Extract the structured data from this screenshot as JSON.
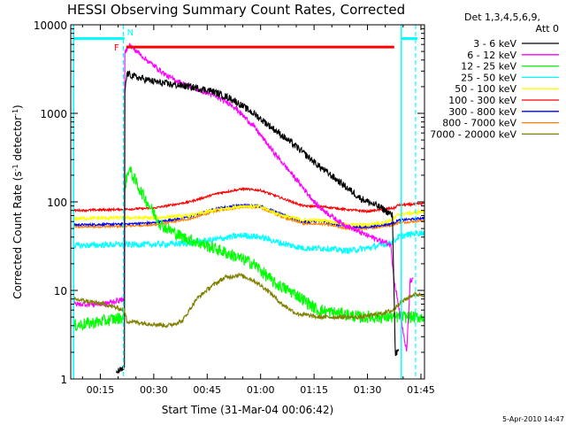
{
  "chart_data": {
    "type": "line",
    "title": "HESSI Observing Summary Count Rates, Corrected",
    "xlabel": "Start Time (31-Mar-04 00:06:42)",
    "ylabel_main": "Corrected Count Rate (s",
    "ylabel_sup": "-1",
    "ylabel_mid": " detector",
    "ylabel_end": ")",
    "yscale": "log",
    "ylim": [
      1,
      10000
    ],
    "xlim_min": [
      6.7,
      106
    ],
    "grid": false,
    "legend_position": "top-right outside",
    "legend_header": [
      "Det 1,3,4,5,6,9,",
      "Att 0"
    ],
    "date_stamp": "5-Apr-2010 14:47",
    "x_ticks": [
      {
        "value": 15,
        "label": "00:15"
      },
      {
        "value": 30,
        "label": "00:30"
      },
      {
        "value": 45,
        "label": "00:45"
      },
      {
        "value": 60,
        "label": "01:00"
      },
      {
        "value": 75,
        "label": "01:15"
      },
      {
        "value": 90,
        "label": "01:30"
      },
      {
        "value": 105,
        "label": "01:45"
      }
    ],
    "y_ticks": [
      {
        "value": 1,
        "label": "1"
      },
      {
        "value": 10,
        "label": "10"
      },
      {
        "value": 100,
        "label": "100"
      },
      {
        "value": 1000,
        "label": "1000"
      },
      {
        "value": 10000,
        "label": "10000"
      }
    ],
    "markers": {
      "orbit_lines_x": [
        7.5,
        99.5
      ],
      "saa_lines_x": [
        21.5,
        103.5
      ],
      "day_bars": [
        {
          "x": [
            7.5,
            21.8
          ],
          "y": 7000
        },
        {
          "x": [
            99.5,
            104
          ],
          "y": 7000
        }
      ],
      "flare_bar": {
        "x": [
          22.3,
          97.5
        ],
        "y": 5600,
        "label": "F"
      },
      "n_label": "N",
      "n_x": 22.0
    },
    "series": [
      {
        "name": "3 - 6 keV",
        "color": "#000000",
        "noise": 0.04,
        "points": [
          [
            19.5,
            1.2
          ],
          [
            21.8,
            1.3
          ],
          [
            21.9,
            1800
          ],
          [
            22.5,
            2800
          ],
          [
            26,
            2500
          ],
          [
            32,
            2200
          ],
          [
            40,
            2000
          ],
          [
            46,
            1800
          ],
          [
            52,
            1450
          ],
          [
            58,
            1000
          ],
          [
            64,
            650
          ],
          [
            70,
            420
          ],
          [
            76,
            260
          ],
          [
            82,
            170
          ],
          [
            88,
            110
          ],
          [
            94,
            85
          ],
          [
            97,
            70
          ],
          [
            97.8,
            2
          ],
          [
            98.8,
            2
          ]
        ]
      },
      {
        "name": "6 - 12 keV",
        "color": "#ff00ff",
        "noise": 0.03,
        "points": [
          [
            7.5,
            7
          ],
          [
            16,
            7
          ],
          [
            21.7,
            8
          ],
          [
            21.9,
            4800
          ],
          [
            23,
            6000
          ],
          [
            28,
            4000
          ],
          [
            34,
            2600
          ],
          [
            40,
            2000
          ],
          [
            46,
            1650
          ],
          [
            52,
            1250
          ],
          [
            58,
            720
          ],
          [
            64,
            350
          ],
          [
            70,
            180
          ],
          [
            76,
            90
          ],
          [
            82,
            60
          ],
          [
            88,
            45
          ],
          [
            94,
            36
          ],
          [
            96.5,
            33
          ],
          [
            97.5,
            13
          ],
          [
            101,
            2
          ],
          [
            102,
            13
          ],
          [
            103,
            13
          ]
        ]
      },
      {
        "name": "12 - 25 keV",
        "color": "#00ff00",
        "noise": 0.07,
        "points": [
          [
            7.5,
            4
          ],
          [
            16,
            4.5
          ],
          [
            21.7,
            5
          ],
          [
            21.9,
            150
          ],
          [
            23,
            240
          ],
          [
            26,
            140
          ],
          [
            32,
            55
          ],
          [
            38,
            40
          ],
          [
            45,
            32
          ],
          [
            52,
            25
          ],
          [
            58,
            20
          ],
          [
            64,
            12
          ],
          [
            70,
            9
          ],
          [
            76,
            6
          ],
          [
            82,
            5.5
          ],
          [
            88,
            5
          ],
          [
            94,
            5
          ],
          [
            97.5,
            5
          ],
          [
            97.8,
            5
          ],
          [
            106,
            5
          ]
        ]
      },
      {
        "name": "25 - 50 keV",
        "color": "#00ffff",
        "noise": 0.035,
        "points": [
          [
            7.5,
            32
          ],
          [
            20,
            33
          ],
          [
            30,
            33
          ],
          [
            40,
            34
          ],
          [
            48,
            38
          ],
          [
            55,
            42
          ],
          [
            60,
            40
          ],
          [
            66,
            34
          ],
          [
            72,
            30
          ],
          [
            78,
            30
          ],
          [
            84,
            28
          ],
          [
            90,
            30
          ],
          [
            96,
            34
          ],
          [
            97.6,
            36
          ],
          [
            98.5,
            40
          ],
          [
            103,
            44
          ],
          [
            106,
            45
          ]
        ]
      },
      {
        "name": "50 - 100 keV",
        "color": "#ffff00",
        "noise": 0.02,
        "points": [
          [
            7.5,
            65
          ],
          [
            20,
            66
          ],
          [
            30,
            66
          ],
          [
            40,
            70
          ],
          [
            48,
            82
          ],
          [
            55,
            90
          ],
          [
            60,
            88
          ],
          [
            66,
            70
          ],
          [
            72,
            62
          ],
          [
            78,
            62
          ],
          [
            84,
            55
          ],
          [
            90,
            55
          ],
          [
            96,
            60
          ],
          [
            97.6,
            65
          ],
          [
            98.5,
            72
          ],
          [
            103,
            75
          ],
          [
            106,
            78
          ]
        ]
      },
      {
        "name": "100 - 300 keV",
        "color": "#ff0000",
        "noise": 0.012,
        "points": [
          [
            7.5,
            80
          ],
          [
            20,
            82
          ],
          [
            30,
            85
          ],
          [
            40,
            100
          ],
          [
            48,
            125
          ],
          [
            55,
            140
          ],
          [
            60,
            135
          ],
          [
            66,
            110
          ],
          [
            72,
            90
          ],
          [
            78,
            88
          ],
          [
            84,
            82
          ],
          [
            90,
            78
          ],
          [
            96,
            84
          ],
          [
            97.6,
            85
          ],
          [
            98.5,
            92
          ],
          [
            103,
            94
          ],
          [
            106,
            96
          ]
        ]
      },
      {
        "name": "300 - 800 keV",
        "color": "#0000ff",
        "noise": 0.012,
        "points": [
          [
            7.5,
            55
          ],
          [
            20,
            56
          ],
          [
            30,
            58
          ],
          [
            40,
            68
          ],
          [
            48,
            85
          ],
          [
            55,
            92
          ],
          [
            60,
            90
          ],
          [
            66,
            72
          ],
          [
            72,
            60
          ],
          [
            78,
            60
          ],
          [
            84,
            52
          ],
          [
            90,
            52
          ],
          [
            96,
            56
          ],
          [
            97.6,
            58
          ],
          [
            98.5,
            62
          ],
          [
            103,
            64
          ],
          [
            106,
            66
          ]
        ]
      },
      {
        "name": "800 - 7000 keV",
        "color": "#ff8000",
        "noise": 0.012,
        "points": [
          [
            7.5,
            52
          ],
          [
            20,
            53
          ],
          [
            30,
            55
          ],
          [
            40,
            64
          ],
          [
            48,
            80
          ],
          [
            55,
            88
          ],
          [
            60,
            86
          ],
          [
            66,
            68
          ],
          [
            72,
            57
          ],
          [
            78,
            56
          ],
          [
            84,
            50
          ],
          [
            90,
            50
          ],
          [
            96,
            54
          ],
          [
            97.6,
            56
          ],
          [
            98.5,
            58
          ],
          [
            103,
            60
          ],
          [
            106,
            62
          ]
        ]
      },
      {
        "name": "7000 - 20000 keV",
        "color": "#808000",
        "noise": 0.025,
        "points": [
          [
            7.5,
            8
          ],
          [
            16,
            7
          ],
          [
            21.7,
            6
          ],
          [
            22.5,
            4.5
          ],
          [
            34,
            4
          ],
          [
            38,
            4.5
          ],
          [
            42,
            8
          ],
          [
            46,
            11
          ],
          [
            50,
            14
          ],
          [
            54,
            15
          ],
          [
            58,
            13
          ],
          [
            62,
            10
          ],
          [
            66,
            7
          ],
          [
            70,
            5.5
          ],
          [
            76,
            5
          ],
          [
            82,
            5
          ],
          [
            88,
            5
          ],
          [
            94,
            5.5
          ],
          [
            97.5,
            6
          ],
          [
            98.5,
            7
          ],
          [
            103,
            9
          ],
          [
            106,
            9
          ]
        ]
      }
    ]
  }
}
